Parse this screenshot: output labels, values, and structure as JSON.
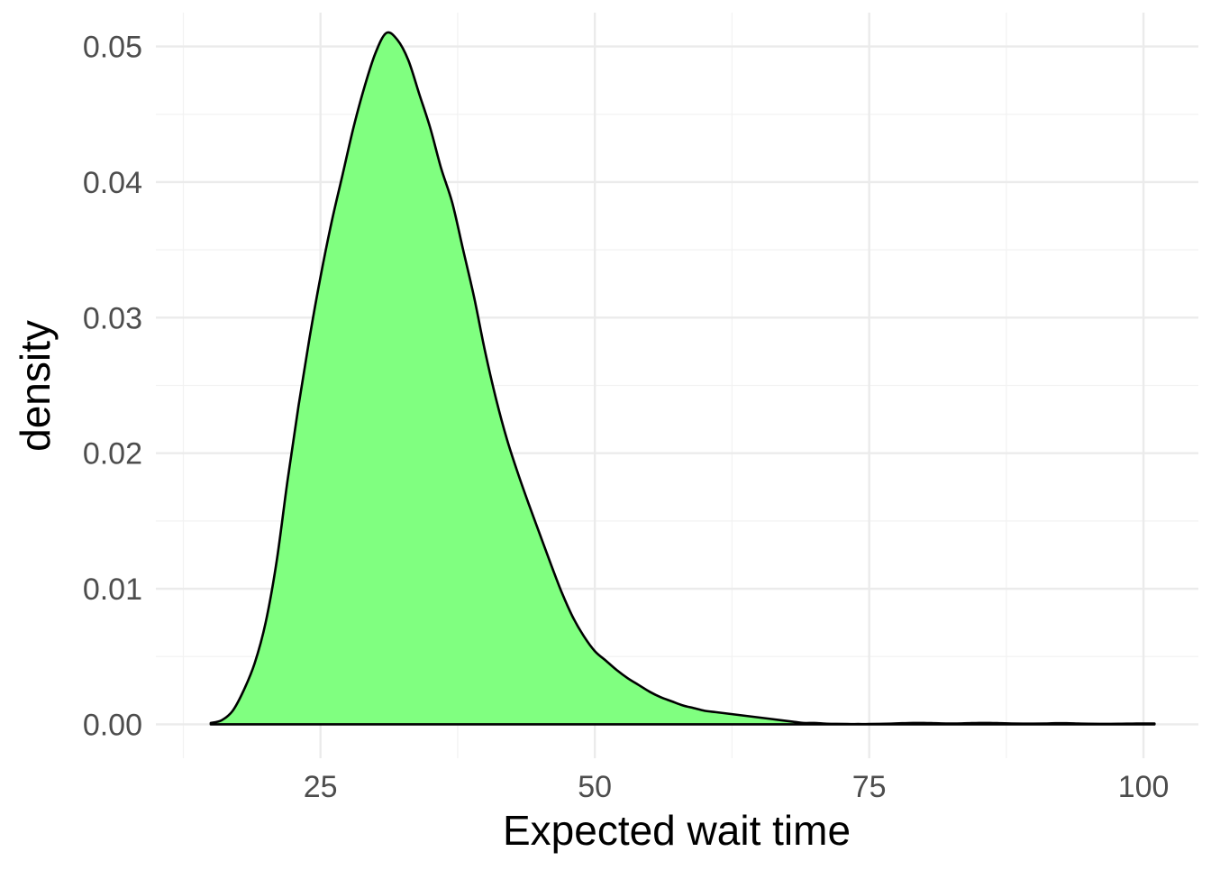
{
  "chart_data": {
    "type": "area",
    "subtype": "density",
    "xlabel": "Expected wait time",
    "ylabel": "density",
    "xlim": [
      10,
      105
    ],
    "ylim": [
      -0.0025,
      0.0525
    ],
    "x_ticks": [
      25,
      50,
      75,
      100
    ],
    "x_tick_labels": [
      "25",
      "50",
      "75",
      "100"
    ],
    "y_ticks": [
      0,
      0.01,
      0.02,
      0.03,
      0.04,
      0.05
    ],
    "y_tick_labels": [
      "0.00",
      "0.01",
      "0.02",
      "0.03",
      "0.04",
      "0.05"
    ],
    "grid": true,
    "legend": "none",
    "fill_color": "#80FF80",
    "line_color": "#000000",
    "series": [
      {
        "x": [
          15,
          16,
          17,
          18,
          19,
          20,
          21,
          22,
          23,
          24,
          25,
          26,
          27,
          28,
          29,
          30,
          31,
          32,
          33,
          34,
          35,
          36,
          37,
          38,
          39,
          40,
          41,
          42,
          43,
          44,
          45,
          46,
          47,
          48,
          49,
          50,
          51,
          52,
          53,
          54,
          55,
          56,
          57,
          58,
          59,
          60,
          61,
          62,
          63,
          64,
          65,
          66,
          67,
          68,
          69,
          70,
          71,
          72,
          73,
          74,
          75,
          76,
          77,
          78,
          79,
          80,
          81,
          82,
          83,
          84,
          85,
          86,
          87,
          88,
          89,
          90,
          91,
          92,
          93,
          94,
          95,
          96,
          97,
          98,
          99,
          100,
          101
        ],
        "y": [
          0.0001,
          0.0003,
          0.001,
          0.0025,
          0.0045,
          0.0075,
          0.012,
          0.018,
          0.0235,
          0.0285,
          0.033,
          0.037,
          0.0405,
          0.044,
          0.047,
          0.0495,
          0.051,
          0.0505,
          0.049,
          0.0465,
          0.044,
          0.041,
          0.0385,
          0.035,
          0.0315,
          0.0275,
          0.024,
          0.021,
          0.0185,
          0.0162,
          0.014,
          0.0118,
          0.0097,
          0.0079,
          0.0065,
          0.0054,
          0.0047,
          0.004,
          0.0034,
          0.0029,
          0.0024,
          0.002,
          0.0017,
          0.0014,
          0.0012,
          0.001,
          0.0009,
          0.0008,
          0.0007,
          0.0006,
          0.0005,
          0.0004,
          0.0003,
          0.0002,
          0.0001,
          0.0001,
          5e-05,
          3e-05,
          2e-05,
          2e-05,
          2e-05,
          3e-05,
          5e-05,
          8e-05,
          0.0001,
          0.0001,
          8e-05,
          6e-05,
          6e-05,
          8e-05,
          0.0001,
          0.0001,
          8e-05,
          6e-05,
          5e-05,
          5e-05,
          6e-05,
          8e-05,
          8e-05,
          6e-05,
          4e-05,
          3e-05,
          3e-05,
          4e-05,
          5e-05,
          6e-05,
          6e-05
        ]
      }
    ]
  }
}
